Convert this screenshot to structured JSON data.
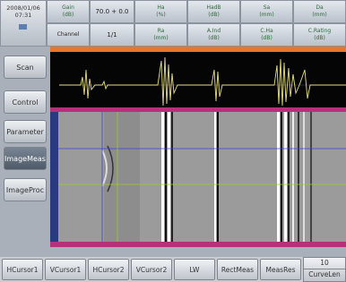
{
  "status": {
    "date": "2008/01/06",
    "time": "07:31"
  },
  "header": {
    "gain": [
      "Gain",
      "(dB)"
    ],
    "gain_value": "70.0 + 0.0",
    "channel": "Channel",
    "channel_value": "1/1",
    "fields": [
      [
        "Ha",
        "(%)"
      ],
      [
        "HadB",
        "(dB)"
      ],
      [
        "Sa",
        "(mm)"
      ],
      [
        "Da",
        "(mm)"
      ],
      [
        "Ra",
        "(mm)"
      ],
      [
        "A.Ind",
        "(dB)"
      ],
      [
        "C.Ha",
        "(dB)"
      ],
      [
        "C.Rating",
        "(dB)"
      ]
    ]
  },
  "menu": [
    "Scan",
    "Control",
    "Parameter",
    "ImageMeas",
    "ImageProc"
  ],
  "toolbar": [
    "HCursor1",
    "VCursor1",
    "HCursor2",
    "VCursor2",
    "LW",
    "RectMeas",
    "MeasRes"
  ],
  "curve": {
    "value": "10",
    "label": "CurveLen"
  }
}
